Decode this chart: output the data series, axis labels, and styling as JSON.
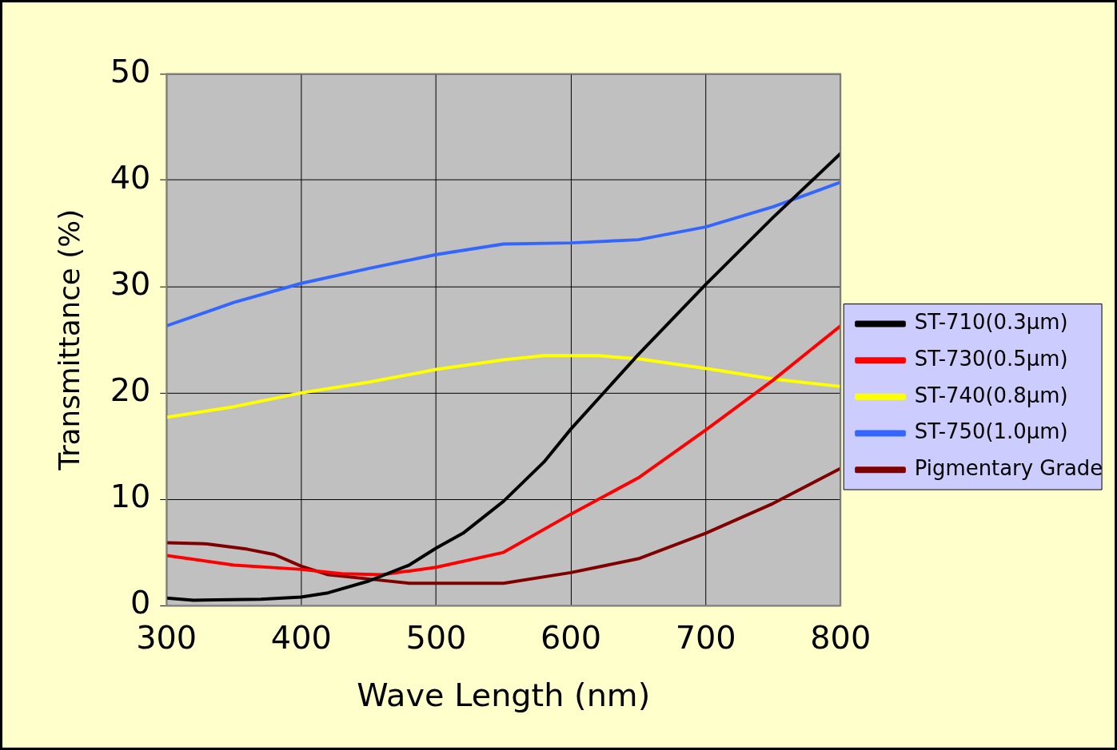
{
  "chart_data": {
    "type": "line",
    "xlabel": "Wave Length (nm)",
    "ylabel": "Transmittance (%)",
    "xlim": [
      300,
      800
    ],
    "xticks": [
      300,
      400,
      500,
      600,
      700,
      800
    ],
    "ylim": [
      0,
      50
    ],
    "yticks": [
      0,
      10,
      20,
      30,
      40,
      50
    ],
    "grid": true,
    "legend": "right",
    "marker": "none",
    "line_style": "solid",
    "series": [
      {
        "name": "ST-710(0.3μm)",
        "color": "#000000",
        "x": [
          300,
          320,
          370,
          400,
          420,
          450,
          480,
          500,
          520,
          550,
          580,
          600,
          650,
          700,
          750,
          800
        ],
        "values": [
          0.7,
          0.5,
          0.6,
          0.8,
          1.2,
          2.3,
          3.8,
          5.4,
          6.8,
          9.8,
          13.5,
          16.6,
          23.6,
          30.2,
          36.5,
          42.5
        ]
      },
      {
        "name": "ST-730(0.5μm)",
        "color": "#ff0000",
        "x": [
          300,
          350,
          400,
          430,
          460,
          500,
          550,
          600,
          650,
          700,
          750,
          800
        ],
        "values": [
          4.7,
          3.8,
          3.4,
          3.0,
          2.9,
          3.6,
          5.0,
          8.6,
          12.0,
          16.5,
          21.2,
          26.3
        ]
      },
      {
        "name": "ST-740(0.8μm)",
        "color": "#ffff00",
        "x": [
          300,
          350,
          400,
          450,
          500,
          550,
          580,
          620,
          650,
          700,
          750,
          800
        ],
        "values": [
          17.7,
          18.7,
          20.0,
          21.0,
          22.2,
          23.1,
          23.5,
          23.5,
          23.2,
          22.3,
          21.3,
          20.6
        ]
      },
      {
        "name": "ST-750(1.0μm)",
        "color": "#3366ff",
        "x": [
          300,
          350,
          400,
          450,
          500,
          550,
          600,
          650,
          700,
          750,
          800
        ],
        "values": [
          26.3,
          28.5,
          30.3,
          31.7,
          33.0,
          34.0,
          34.1,
          34.4,
          35.6,
          37.5,
          39.8
        ]
      },
      {
        "name": "Pigmentary Grade",
        "color": "#800000",
        "x": [
          300,
          330,
          360,
          380,
          400,
          420,
          450,
          480,
          550,
          600,
          650,
          700,
          750,
          800
        ],
        "values": [
          5.9,
          5.8,
          5.3,
          4.8,
          3.7,
          2.9,
          2.5,
          2.1,
          2.1,
          3.1,
          4.4,
          6.8,
          9.6,
          12.9
        ]
      }
    ]
  }
}
